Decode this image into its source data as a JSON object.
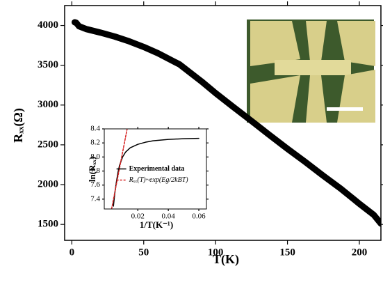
{
  "chart_data": [
    {
      "type": "line",
      "x_label": "T(K)",
      "y_label": "Rₓₓ(Ω)",
      "x": [
        2,
        3,
        5,
        10,
        20,
        30,
        40,
        50,
        60,
        75,
        90,
        100,
        112,
        125,
        137,
        150,
        162,
        175,
        187,
        200,
        210,
        215
      ],
      "series": [
        {
          "color": "#000000",
          "values": [
            4040,
            4035,
            3990,
            3955,
            3910,
            3860,
            3800,
            3730,
            3650,
            3510,
            3300,
            3150,
            2980,
            2800,
            2630,
            2450,
            2290,
            2110,
            1950,
            1760,
            1620,
            1510
          ]
        }
      ],
      "xlim": [
        -5,
        215
      ],
      "ylim": [
        1300,
        4250
      ],
      "xticks": [
        0,
        50,
        100,
        150,
        200
      ],
      "yticks": [
        1500,
        2000,
        2500,
        3000,
        3500,
        4000
      ]
    },
    {
      "type": "line",
      "x_label": "1/T(K⁻¹)",
      "y_label": "ln(Rₓₓ)",
      "legend": "right",
      "series": [
        {
          "name": "Experimental data",
          "color": "#000000",
          "x": [
            0.004,
            0.005,
            0.006,
            0.007,
            0.008,
            0.01,
            0.012,
            0.015,
            0.02,
            0.025,
            0.03,
            0.04,
            0.05,
            0.06
          ],
          "values": [
            7.3,
            7.5,
            7.65,
            7.78,
            7.88,
            8.0,
            8.07,
            8.13,
            8.18,
            8.21,
            8.23,
            8.25,
            8.26,
            8.265
          ]
        },
        {
          "name": "Rₓₓ(T)~exp(Eg/2kBT)",
          "color": "#d62020",
          "style": "dashed",
          "x": [
            0.0028,
            0.013
          ],
          "values": [
            7.26,
            8.4
          ]
        }
      ],
      "xlim": [
        -0.002,
        0.065
      ],
      "ylim": [
        7.26,
        8.4
      ],
      "xticks": [
        0.02,
        0.04,
        0.06
      ],
      "yticks": [
        7.4,
        7.6,
        7.8,
        {
          "value": 8,
          "label": "8.0"
        },
        8.2,
        8.4
      ]
    }
  ]
}
